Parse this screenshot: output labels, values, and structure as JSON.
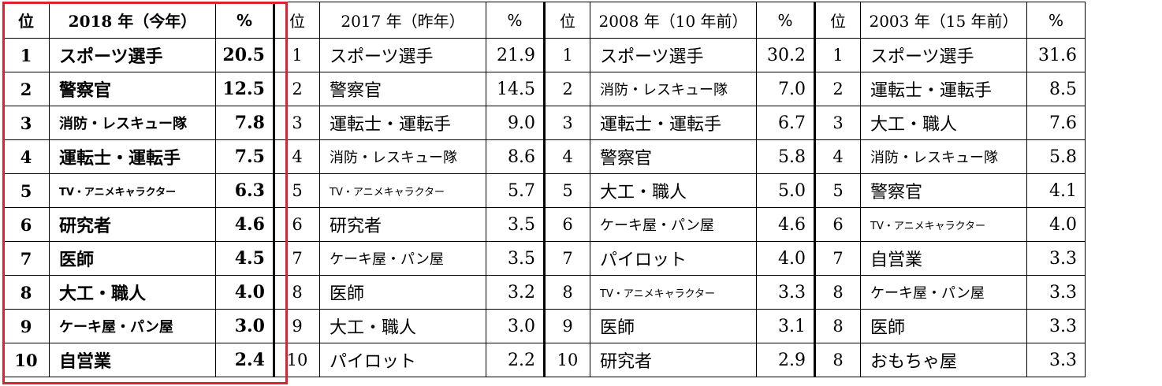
{
  "headers": {
    "rank": "位",
    "pct": "%",
    "groups": [
      "2018 年（今年）",
      "2017 年（昨年）",
      "2008 年（10 年前）",
      "2003 年（15 年前）"
    ]
  },
  "groups": [
    {
      "rows": [
        {
          "rank": "1",
          "name": "スポーツ選手",
          "pct": "20.5"
        },
        {
          "rank": "2",
          "name": "警察官",
          "pct": "12.5"
        },
        {
          "rank": "3",
          "name": "消防・レスキュー隊",
          "pct": "7.8"
        },
        {
          "rank": "4",
          "name": "運転士・運転手",
          "pct": "7.5"
        },
        {
          "rank": "5",
          "name": "TV・アニメキャラクター",
          "pct": "6.3"
        },
        {
          "rank": "6",
          "name": "研究者",
          "pct": "4.6"
        },
        {
          "rank": "7",
          "name": "医師",
          "pct": "4.5"
        },
        {
          "rank": "8",
          "name": "大工・職人",
          "pct": "4.0"
        },
        {
          "rank": "9",
          "name": "ケーキ屋・パン屋",
          "pct": "3.0"
        },
        {
          "rank": "10",
          "name": "自営業",
          "pct": "2.4"
        }
      ]
    },
    {
      "rows": [
        {
          "rank": "1",
          "name": "スポーツ選手",
          "pct": "21.9"
        },
        {
          "rank": "2",
          "name": "警察官",
          "pct": "14.5"
        },
        {
          "rank": "3",
          "name": "運転士・運転手",
          "pct": "9.0"
        },
        {
          "rank": "4",
          "name": "消防・レスキュー隊",
          "pct": "8.6"
        },
        {
          "rank": "5",
          "name": "TV・アニメキャラクター",
          "pct": "5.7"
        },
        {
          "rank": "6",
          "name": "研究者",
          "pct": "3.5"
        },
        {
          "rank": "7",
          "name": "ケーキ屋・パン屋",
          "pct": "3.5"
        },
        {
          "rank": "8",
          "name": "医師",
          "pct": "3.2"
        },
        {
          "rank": "9",
          "name": "大工・職人",
          "pct": "3.0"
        },
        {
          "rank": "10",
          "name": "パイロット",
          "pct": "2.2"
        }
      ]
    },
    {
      "rows": [
        {
          "rank": "1",
          "name": "スポーツ選手",
          "pct": "30.2"
        },
        {
          "rank": "2",
          "name": "消防・レスキュー隊",
          "pct": "7.0"
        },
        {
          "rank": "3",
          "name": "運転士・運転手",
          "pct": "6.7"
        },
        {
          "rank": "4",
          "name": "警察官",
          "pct": "5.8"
        },
        {
          "rank": "5",
          "name": "大工・職人",
          "pct": "5.0"
        },
        {
          "rank": "6",
          "name": "ケーキ屋・パン屋",
          "pct": "4.6"
        },
        {
          "rank": "7",
          "name": "パイロット",
          "pct": "4.0"
        },
        {
          "rank": "8",
          "name": "TV・アニメキャラクター",
          "pct": "3.3"
        },
        {
          "rank": "9",
          "name": "医師",
          "pct": "3.1"
        },
        {
          "rank": "10",
          "name": "研究者",
          "pct": "2.9"
        }
      ]
    },
    {
      "rows": [
        {
          "rank": "1",
          "name": "スポーツ選手",
          "pct": "31.6"
        },
        {
          "rank": "2",
          "name": "運転士・運転手",
          "pct": "8.5"
        },
        {
          "rank": "3",
          "name": "大工・職人",
          "pct": "7.6"
        },
        {
          "rank": "4",
          "name": "消防・レスキュー隊",
          "pct": "5.8"
        },
        {
          "rank": "5",
          "name": "警察官",
          "pct": "4.1"
        },
        {
          "rank": "6",
          "name": "TV・アニメキャラクター",
          "pct": "4.0"
        },
        {
          "rank": "7",
          "name": "自営業",
          "pct": "3.3"
        },
        {
          "rank": "8",
          "name": "ケーキ屋・パン屋",
          "pct": "3.3"
        },
        {
          "rank": "8",
          "name": "医師",
          "pct": "3.3"
        },
        {
          "rank": "8",
          "name": "おもちゃ屋",
          "pct": "3.3"
        }
      ]
    }
  ],
  "colors": {
    "highlight": "#d9232e",
    "text": "#000000",
    "background": "#ffffff"
  }
}
